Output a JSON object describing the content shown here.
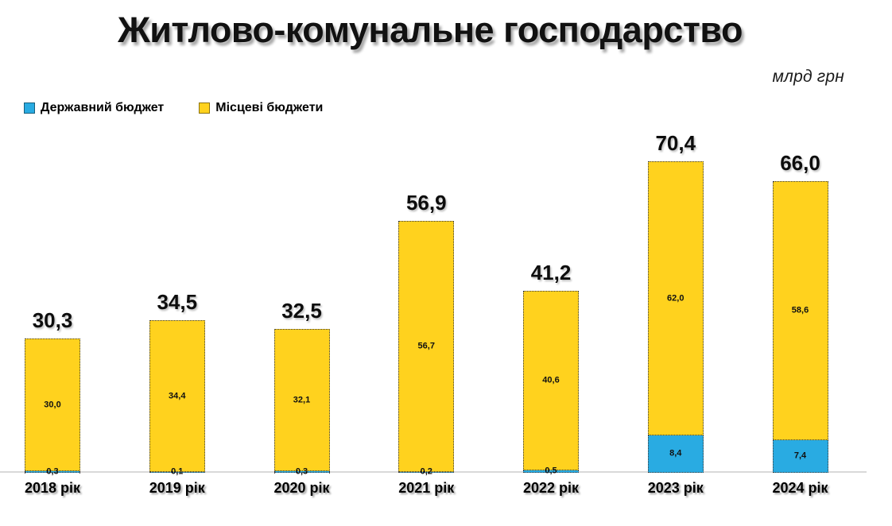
{
  "title": "Житлово-комунальне господарство",
  "unit_label": "млрд грн",
  "colors": {
    "state_budget": "#29ABE2",
    "local_budget": "#FFD21E",
    "axis_line": "#D9D9D9",
    "text": "#000000"
  },
  "chart_data": {
    "type": "bar",
    "stacked": true,
    "title": "Житлово-комунальне господарство",
    "unit": "млрд грн",
    "grid": false,
    "value_axis_visible": false,
    "legend_position": "top-left",
    "categories": [
      "2018 рік",
      "2019 рік",
      "2020 рік",
      "2021 рік",
      "2022 рік",
      "2023 рік",
      "2024 рік"
    ],
    "series": [
      {
        "name": "Державний бюджет",
        "color": "#29ABE2",
        "values": [
          0.3,
          0.1,
          0.3,
          0.2,
          0.5,
          8.4,
          7.4
        ],
        "labels": [
          "0,3",
          "0,1",
          "0,3",
          "0,2",
          "0,5",
          "8,4",
          "7,4"
        ]
      },
      {
        "name": "Місцеві бюджети",
        "color": "#FFD21E",
        "values": [
          30.0,
          34.4,
          32.1,
          56.7,
          40.6,
          62.0,
          58.6
        ],
        "labels": [
          "30,0",
          "34,4",
          "32,1",
          "56,7",
          "40,6",
          "62,0",
          "58,6"
        ]
      }
    ],
    "totals": [
      30.3,
      34.5,
      32.5,
      56.9,
      41.2,
      70.4,
      66.0
    ],
    "total_labels": [
      "30,3",
      "34,5",
      "32,5",
      "56,9",
      "41,2",
      "70,4",
      "66,0"
    ]
  }
}
